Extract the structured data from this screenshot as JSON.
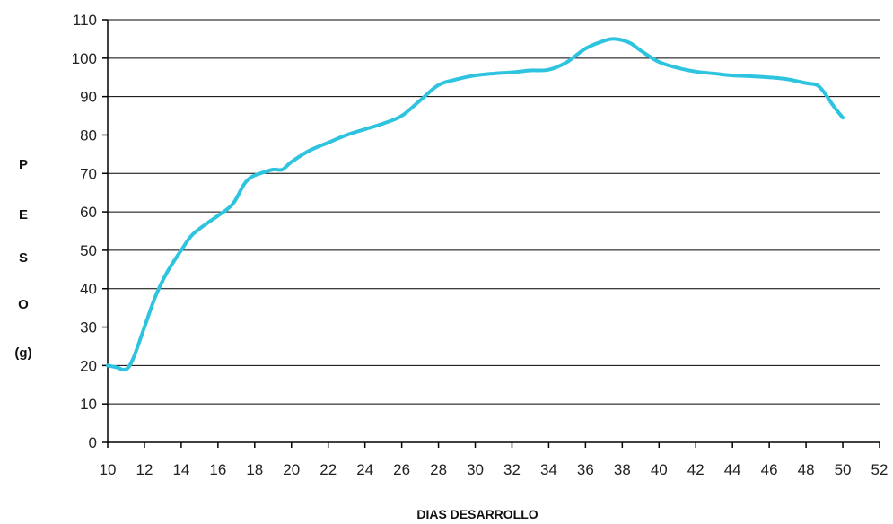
{
  "chart_data": {
    "type": "line",
    "title": "",
    "xlabel": "DIAS DESARROLLO",
    "ylabel_letters": [
      "P",
      "E",
      "S",
      "O",
      "(g)"
    ],
    "ylabel": "PESO (g)",
    "xlim": [
      10,
      52
    ],
    "ylim": [
      0,
      110
    ],
    "x_ticks": [
      "10",
      "12",
      "14",
      "16",
      "18",
      "20",
      "22",
      "24",
      "26",
      "28",
      "30",
      "32",
      "34",
      "36",
      "38",
      "40",
      "42",
      "44",
      "46",
      "48",
      "50",
      "52"
    ],
    "y_ticks": [
      "0",
      "10",
      "20",
      "30",
      "40",
      "50",
      "60",
      "70",
      "80",
      "90",
      "100",
      "110"
    ],
    "grid": true,
    "legend": "none",
    "series": [
      {
        "color": "#2ec4e0",
        "x": [
          10,
          10.5,
          11,
          11.4,
          12,
          12.6,
          13.2,
          14,
          14.6,
          15.4,
          16,
          16.8,
          17.4,
          17.8,
          18.3,
          19,
          19.5,
          20,
          21,
          22,
          23,
          24,
          25,
          26,
          27,
          28,
          29,
          30,
          31,
          32,
          33,
          34,
          35,
          36,
          37,
          37.6,
          38.4,
          39,
          40,
          41,
          42,
          43,
          44,
          45,
          46,
          47,
          48,
          48.6,
          49,
          49.5,
          50
        ],
        "y": [
          20,
          19.5,
          19,
          22,
          30,
          38,
          44,
          50,
          54,
          57,
          59,
          62,
          67,
          69,
          70,
          71,
          71,
          73,
          76,
          78,
          80,
          81.5,
          83,
          85,
          89,
          93,
          94.5,
          95.5,
          96,
          96.3,
          96.8,
          97,
          99,
          102.5,
          104.5,
          105,
          104,
          102,
          99,
          97.5,
          96.5,
          96,
          95.5,
          95.3,
          95,
          94.5,
          93.5,
          93,
          91,
          87.5,
          84.5
        ]
      }
    ]
  }
}
